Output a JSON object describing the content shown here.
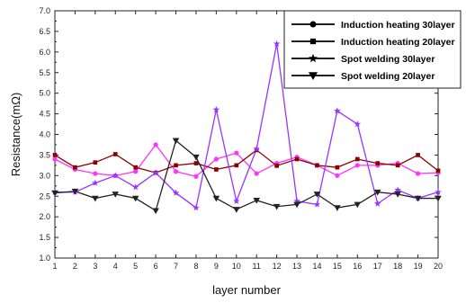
{
  "chart_data": {
    "type": "line",
    "xlabel": "layer number",
    "ylabel": "Resistance(mΩ)",
    "xlim": [
      1,
      20
    ],
    "ylim": [
      1.0,
      7.0
    ],
    "x": [
      1,
      2,
      3,
      4,
      5,
      6,
      7,
      8,
      9,
      10,
      11,
      12,
      13,
      14,
      15,
      16,
      17,
      18,
      19,
      20
    ],
    "x_ticks": [
      "1",
      "2",
      "3",
      "4",
      "5",
      "6",
      "7",
      "8",
      "9",
      "10",
      "11",
      "12",
      "13",
      "14",
      "15",
      "16",
      "17",
      "18",
      "19",
      "20"
    ],
    "y_ticks": [
      "1.0",
      "1.5",
      "2.0",
      "2.5",
      "3.0",
      "3.5",
      "4.0",
      "4.5",
      "5.0",
      "5.5",
      "6.0",
      "6.5",
      "7.0"
    ],
    "grid": false,
    "legend_position": "top-right",
    "series": [
      {
        "name": "Induction heating 30layer",
        "marker": "circle",
        "color": "#ff33ff",
        "legend_color": "#000000",
        "values": [
          3.4,
          3.15,
          3.05,
          3.0,
          3.1,
          3.75,
          3.1,
          2.98,
          3.4,
          3.55,
          3.05,
          3.3,
          3.45,
          3.25,
          3.0,
          3.25,
          3.25,
          3.3,
          3.05,
          3.07
        ]
      },
      {
        "name": "Induction heating 20layer",
        "marker": "square",
        "color": "#8b0000",
        "legend_color": "#000000",
        "values": [
          3.5,
          3.2,
          3.32,
          3.52,
          3.2,
          3.07,
          3.25,
          3.3,
          3.15,
          3.25,
          3.62,
          3.24,
          3.4,
          3.25,
          3.2,
          3.4,
          3.3,
          3.25,
          3.5,
          3.12
        ]
      },
      {
        "name": "Spot welding 30layer",
        "marker": "star",
        "color": "#9933ff",
        "legend_color": "#000000",
        "values": [
          2.6,
          2.6,
          2.82,
          3.0,
          2.72,
          3.07,
          2.58,
          2.22,
          4.6,
          2.38,
          3.65,
          6.2,
          2.38,
          2.3,
          4.57,
          4.25,
          2.32,
          2.65,
          2.45,
          2.6
        ]
      },
      {
        "name": "Spot welding 20layer",
        "marker": "triangle-down",
        "color": "#222222",
        "legend_color": "#000000",
        "values": [
          2.58,
          2.62,
          2.45,
          2.55,
          2.45,
          2.15,
          3.85,
          3.45,
          2.45,
          2.18,
          2.4,
          2.25,
          2.3,
          2.55,
          2.22,
          2.3,
          2.6,
          2.55,
          2.45,
          2.45
        ]
      }
    ]
  }
}
